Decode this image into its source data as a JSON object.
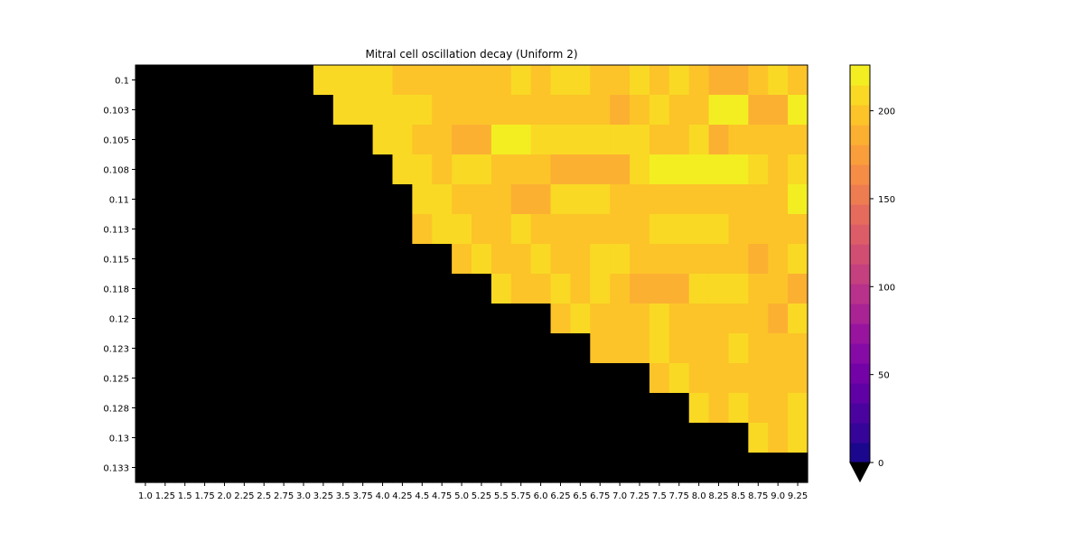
{
  "chart_data": {
    "type": "heatmap",
    "title": "Mitral cell oscillation decay (Uniform 2)",
    "xlabel": "",
    "ylabel": "",
    "x_categories": [
      "1.0",
      "1.25",
      "1.5",
      "1.75",
      "2.0",
      "2.25",
      "2.5",
      "2.75",
      "3.0",
      "3.25",
      "3.5",
      "3.75",
      "4.0",
      "4.25",
      "4.5",
      "4.75",
      "5.0",
      "5.25",
      "5.5",
      "5.75",
      "6.0",
      "6.25",
      "6.5",
      "6.75",
      "7.0",
      "7.25",
      "7.5",
      "7.75",
      "8.0",
      "8.25",
      "8.5",
      "8.75",
      "9.0",
      "9.25"
    ],
    "y_categories": [
      "0.1",
      "0.103",
      "0.105",
      "0.108",
      "0.11",
      "0.113",
      "0.115",
      "0.118",
      "0.12",
      "0.123",
      "0.125",
      "0.128",
      "0.13",
      "0.133"
    ],
    "colormap": "plasma",
    "below_range_color": "#000000",
    "colorbar": {
      "min": 0,
      "max": 226,
      "ticks": [
        0,
        50,
        100,
        150,
        200
      ],
      "extend": "min",
      "levels": 20
    },
    "values": [
      [
        null,
        null,
        null,
        null,
        null,
        null,
        null,
        null,
        null,
        205,
        205,
        205,
        205,
        195,
        195,
        195,
        195,
        195,
        195,
        210,
        200,
        212,
        212,
        195,
        195,
        210,
        198,
        212,
        200,
        183,
        183,
        198,
        212,
        200
      ],
      [
        null,
        null,
        null,
        null,
        null,
        null,
        null,
        null,
        null,
        null,
        205,
        205,
        205,
        212,
        212,
        200,
        200,
        200,
        200,
        200,
        200,
        200,
        200,
        200,
        192,
        200,
        208,
        200,
        200,
        226,
        226,
        188,
        188,
        218
      ],
      [
        null,
        null,
        null,
        null,
        null,
        null,
        null,
        null,
        null,
        null,
        null,
        null,
        205,
        205,
        200,
        200,
        190,
        190,
        218,
        218,
        208,
        208,
        208,
        208,
        208,
        208,
        200,
        200,
        208,
        192,
        200,
        200,
        200,
        200
      ],
      [
        null,
        null,
        null,
        null,
        null,
        null,
        null,
        null,
        null,
        null,
        null,
        null,
        null,
        205,
        205,
        200,
        208,
        208,
        200,
        200,
        200,
        192,
        192,
        192,
        192,
        212,
        226,
        216,
        216,
        216,
        216,
        208,
        200,
        208
      ],
      [
        null,
        null,
        null,
        null,
        null,
        null,
        null,
        null,
        null,
        null,
        null,
        null,
        null,
        null,
        208,
        208,
        200,
        200,
        200,
        192,
        192,
        208,
        208,
        208,
        200,
        200,
        200,
        200,
        200,
        200,
        200,
        195,
        195,
        226
      ],
      [
        null,
        null,
        null,
        null,
        null,
        null,
        null,
        null,
        null,
        null,
        null,
        null,
        null,
        null,
        200,
        208,
        208,
        200,
        200,
        208,
        200,
        200,
        195,
        195,
        195,
        195,
        212,
        208,
        208,
        208,
        200,
        200,
        200,
        200
      ],
      [
        null,
        null,
        null,
        null,
        null,
        null,
        null,
        null,
        null,
        null,
        null,
        null,
        null,
        null,
        null,
        null,
        200,
        210,
        200,
        200,
        208,
        200,
        195,
        208,
        208,
        200,
        200,
        200,
        195,
        195,
        195,
        188,
        200,
        208
      ],
      [
        null,
        null,
        null,
        null,
        null,
        null,
        null,
        null,
        null,
        null,
        null,
        null,
        null,
        null,
        null,
        null,
        null,
        null,
        208,
        200,
        200,
        208,
        200,
        208,
        200,
        192,
        192,
        185,
        208,
        208,
        208,
        200,
        200,
        192
      ],
      [
        null,
        null,
        null,
        null,
        null,
        null,
        null,
        null,
        null,
        null,
        null,
        null,
        null,
        null,
        null,
        null,
        null,
        null,
        null,
        null,
        null,
        200,
        208,
        200,
        200,
        200,
        208,
        200,
        200,
        195,
        195,
        195,
        188,
        208
      ],
      [
        null,
        null,
        null,
        null,
        null,
        null,
        null,
        null,
        null,
        null,
        null,
        null,
        null,
        null,
        null,
        null,
        null,
        null,
        null,
        null,
        null,
        null,
        null,
        200,
        200,
        200,
        208,
        200,
        200,
        195,
        208,
        200,
        200,
        200
      ],
      [
        null,
        null,
        null,
        null,
        null,
        null,
        null,
        null,
        null,
        null,
        null,
        null,
        null,
        null,
        null,
        null,
        null,
        null,
        null,
        null,
        null,
        null,
        null,
        null,
        null,
        null,
        195,
        208,
        200,
        200,
        200,
        200,
        195,
        195
      ],
      [
        null,
        null,
        null,
        null,
        null,
        null,
        null,
        null,
        null,
        null,
        null,
        null,
        null,
        null,
        null,
        null,
        null,
        null,
        null,
        null,
        null,
        null,
        null,
        null,
        null,
        null,
        null,
        null,
        208,
        195,
        208,
        200,
        200,
        208
      ],
      [
        null,
        null,
        null,
        null,
        null,
        null,
        null,
        null,
        null,
        null,
        null,
        null,
        null,
        null,
        null,
        null,
        null,
        null,
        null,
        null,
        null,
        null,
        null,
        null,
        null,
        null,
        null,
        null,
        null,
        null,
        null,
        208,
        200,
        208
      ],
      [
        null,
        null,
        null,
        null,
        null,
        null,
        null,
        null,
        null,
        null,
        null,
        null,
        null,
        null,
        null,
        null,
        null,
        null,
        null,
        null,
        null,
        null,
        null,
        null,
        null,
        null,
        null,
        null,
        null,
        null,
        null,
        null,
        null,
        null
      ]
    ]
  }
}
